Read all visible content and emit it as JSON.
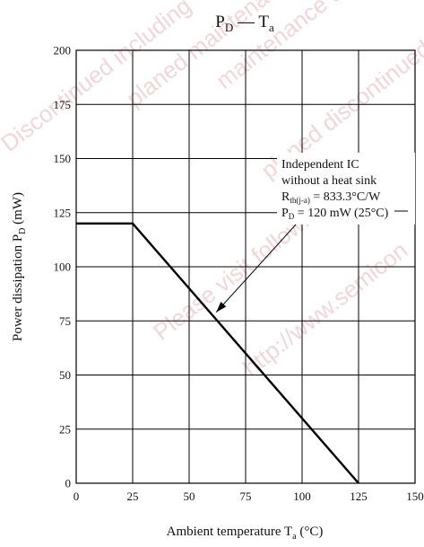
{
  "chart_data": {
    "type": "line",
    "title_main": "P",
    "title_main_sub": "D",
    "title_sep": " — ",
    "title_sec": "T",
    "title_sec_sub": "a",
    "xlabel": "Ambient temperature  T",
    "xlabel_sub": "a",
    "xlabel_unit": "  (°C)",
    "ylabel": "Power dissipation  P",
    "ylabel_sub": "D",
    "ylabel_unit": "  (mW)",
    "xlim": [
      0,
      150
    ],
    "ylim": [
      0,
      200
    ],
    "x_ticks": [
      0,
      25,
      50,
      75,
      100,
      125,
      150
    ],
    "y_ticks": [
      0,
      25,
      50,
      75,
      100,
      125,
      150,
      175,
      200
    ],
    "grid": true,
    "series": [
      {
        "x": [
          0,
          25,
          125
        ],
        "y": [
          120,
          120,
          0
        ]
      }
    ],
    "annotation": {
      "line1": "Independent IC",
      "line2": "without a heat sink",
      "line3_prefix": "R",
      "line3_sub": "th(j-a)",
      "line3_rest": " = 833.3°C/W",
      "line4_prefix": "P",
      "line4_sub": "D",
      "line4_rest": " = 120 mW (25°C)",
      "arrow_target": {
        "x": 62,
        "y": 79
      },
      "colors": {
        "box_bg": "#ffffff",
        "text": "#111111"
      }
    },
    "watermark": {
      "lines": [
        "Discontinued including",
        "planed maintenance",
        "maintenance discontinued",
        "planed discontinued typ",
        "Please visit following URL",
        "http://www.semicon"
      ],
      "color": "#e8b5b8"
    },
    "colors": {
      "line": "#000000",
      "grid": "#000000",
      "axis": "#000000",
      "text": "#111111"
    }
  }
}
